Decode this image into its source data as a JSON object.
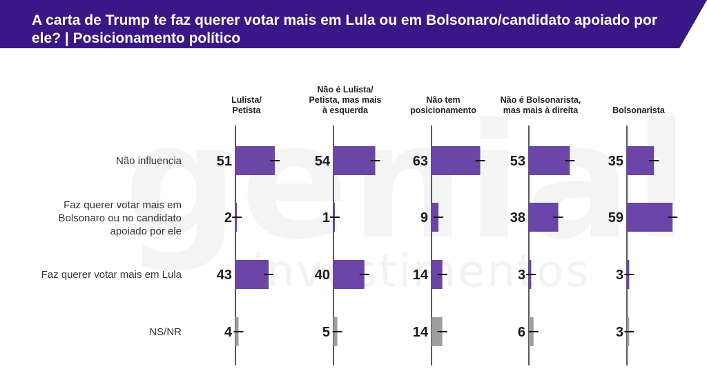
{
  "header": {
    "title": "A carta de Trump te faz querer votar mais em Lula ou em Bolsonaro/candidato apoiado por ele? | Posicionamento político"
  },
  "watermark": {
    "brand": "genial",
    "sub": "investimentos"
  },
  "colors": {
    "header_bg": "#3a1787",
    "bar_purple": "#6b45a8",
    "bar_gray": "#9e9e9e"
  },
  "chart_data": {
    "type": "bar",
    "orientation": "horizontal",
    "title": "A carta de Trump te faz querer votar mais em Lula ou em Bolsonaro/candidato apoiado por ele? | Posicionamento político",
    "columns": [
      "Lulista/\nPetista",
      "Não é Lulista/\nPetista, mas mais\nà esquerda",
      "Não tem\nposicionamento",
      "Não é Bolsonarista,\nmas mais à direita",
      "Bolsonarista"
    ],
    "categories": [
      "Não influencia",
      "Faz querer votar mais em Bolsonaro ou no candidato apoiado por ele",
      "Faz querer votar mais em Lula",
      "NS/NR"
    ],
    "values": [
      [
        51,
        54,
        63,
        53,
        35
      ],
      [
        2,
        1,
        9,
        38,
        59
      ],
      [
        43,
        40,
        14,
        3,
        3
      ],
      [
        4,
        5,
        14,
        6,
        3
      ]
    ],
    "series_colors": [
      "#6b45a8",
      "#6b45a8",
      "#6b45a8",
      "#9e9e9e"
    ],
    "error_bars": true,
    "xlim": [
      0,
      100
    ],
    "grid": false
  }
}
